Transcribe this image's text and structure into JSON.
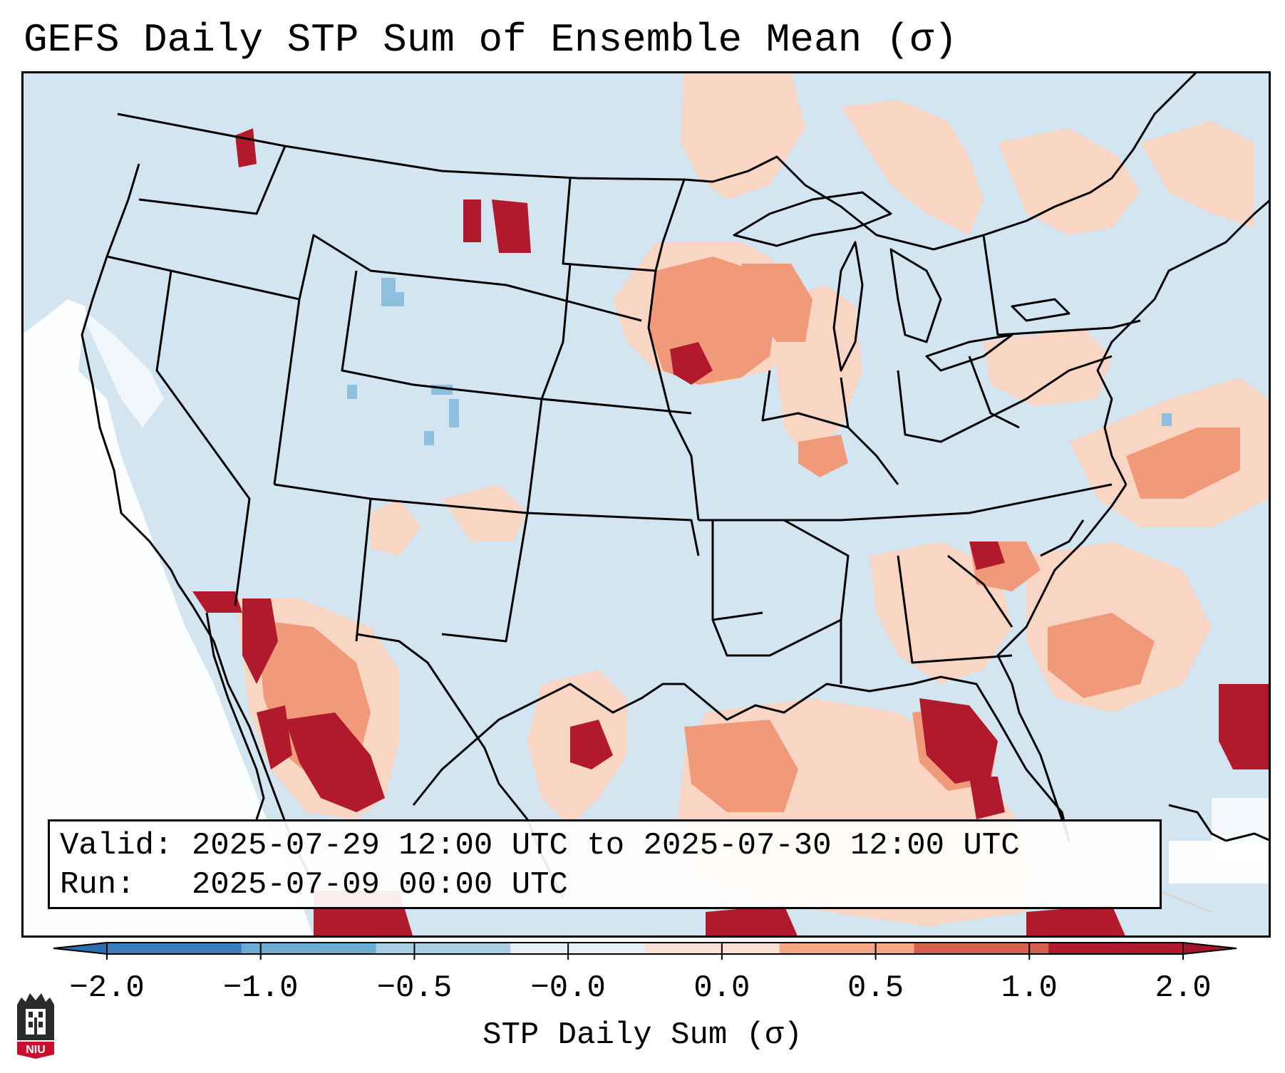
{
  "title": "GEFS Daily STP Sum of Ensemble Mean (σ)",
  "info": {
    "valid_label": "Valid:",
    "valid_value": "2025-07-29 12:00 UTC to 2025-07-30 12:00 UTC",
    "run_label": "Run:",
    "run_value": "2025-07-09 00:00 UTC"
  },
  "colorbar": {
    "label": "STP Daily Sum (σ)",
    "ticks": [
      "−2.0",
      "−1.0",
      "−0.5",
      "−0.0",
      "0.0",
      "0.5",
      "1.0",
      "2.0"
    ],
    "colors": [
      "#3b7db8",
      "#6aacd3",
      "#a8cfe4",
      "#e8f0f5",
      "#f9e0d5",
      "#f4a685",
      "#d65f4d",
      "#b11a2c"
    ],
    "extend_low_color": "#2f6fb0",
    "extend_high_color": "#a5152a"
  },
  "map": {
    "ocean_color": "#d3e5f0",
    "land_color": "#d3e5f0",
    "border_color": "#000000",
    "no_data_color": "#ffffff"
  },
  "logo": {
    "text": "NIU"
  }
}
